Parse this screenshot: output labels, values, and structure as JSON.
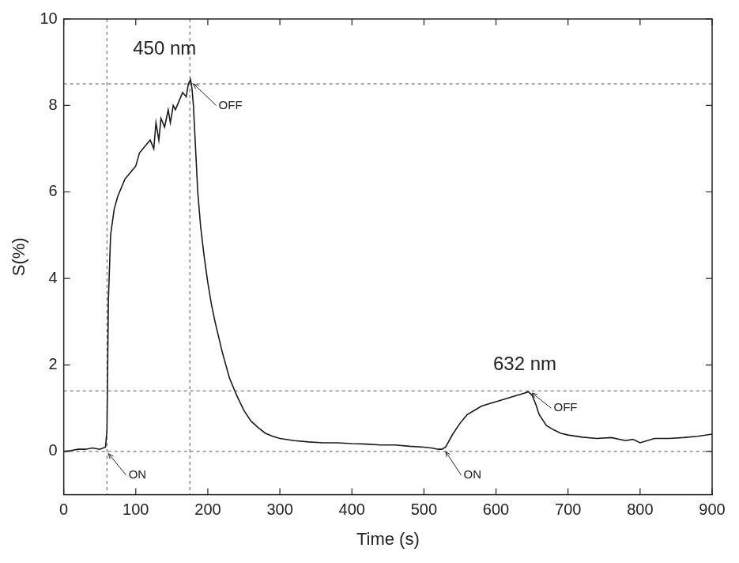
{
  "chart_data": {
    "type": "line",
    "xlabel": "Time (s)",
    "ylabel": "S(%)",
    "color": "#1a1a1a",
    "grid": false,
    "xlim": [
      0,
      900
    ],
    "xticks": [
      0,
      100,
      200,
      300,
      400,
      500,
      600,
      700,
      800,
      900
    ],
    "ylim": [
      -1,
      10
    ],
    "yticks": [
      0,
      2,
      4,
      6,
      8,
      10
    ],
    "x": [
      0,
      10,
      20,
      30,
      40,
      50,
      58,
      60,
      62,
      65,
      70,
      75,
      80,
      85,
      90,
      95,
      100,
      105,
      110,
      115,
      120,
      125,
      128,
      132,
      135,
      140,
      145,
      148,
      152,
      155,
      160,
      165,
      170,
      173,
      176,
      178,
      180,
      183,
      186,
      190,
      195,
      200,
      205,
      210,
      220,
      230,
      240,
      250,
      260,
      270,
      280,
      290,
      300,
      320,
      340,
      360,
      380,
      400,
      420,
      440,
      460,
      480,
      500,
      510,
      520,
      525,
      530,
      540,
      550,
      560,
      570,
      580,
      590,
      600,
      610,
      620,
      630,
      640,
      645,
      650,
      655,
      660,
      670,
      680,
      690,
      700,
      720,
      740,
      760,
      780,
      790,
      800,
      820,
      840,
      860,
      880,
      900
    ],
    "values": [
      0.0,
      0.02,
      0.05,
      0.05,
      0.08,
      0.05,
      0.1,
      0.5,
      3.5,
      5.0,
      5.6,
      5.9,
      6.1,
      6.3,
      6.4,
      6.5,
      6.6,
      6.9,
      7.0,
      7.1,
      7.2,
      7.0,
      7.6,
      7.2,
      7.7,
      7.5,
      7.9,
      7.6,
      8.0,
      7.9,
      8.1,
      8.3,
      8.2,
      8.5,
      8.6,
      8.4,
      8.0,
      7.0,
      6.0,
      5.2,
      4.5,
      3.9,
      3.4,
      3.0,
      2.3,
      1.7,
      1.3,
      0.95,
      0.7,
      0.55,
      0.42,
      0.35,
      0.3,
      0.25,
      0.22,
      0.2,
      0.2,
      0.18,
      0.17,
      0.15,
      0.15,
      0.12,
      0.1,
      0.08,
      0.05,
      0.05,
      0.1,
      0.4,
      0.65,
      0.85,
      0.95,
      1.05,
      1.1,
      1.15,
      1.2,
      1.25,
      1.3,
      1.35,
      1.38,
      1.3,
      1.1,
      0.85,
      0.6,
      0.5,
      0.42,
      0.38,
      0.33,
      0.3,
      0.32,
      0.25,
      0.28,
      0.2,
      0.3,
      0.3,
      0.32,
      0.35,
      0.4
    ],
    "hlines": [
      8.5,
      1.4,
      0
    ],
    "vlines": [
      60,
      175
    ],
    "annotations": [
      {
        "text": "450 nm",
        "x": 140,
        "y": 9.3
      },
      {
        "text": "632 nm",
        "x": 640,
        "y": 2.0
      },
      {
        "text": "ON",
        "x": 90,
        "y": -0.55,
        "point": [
          62,
          -0.05
        ]
      },
      {
        "text": "OFF",
        "x": 215,
        "y": 8.0,
        "point": [
          180,
          8.5
        ]
      },
      {
        "text": "ON",
        "x": 555,
        "y": -0.55,
        "point": [
          530,
          0.0
        ]
      },
      {
        "text": "OFF",
        "x": 680,
        "y": 1.0,
        "point": [
          650,
          1.35
        ]
      }
    ]
  }
}
